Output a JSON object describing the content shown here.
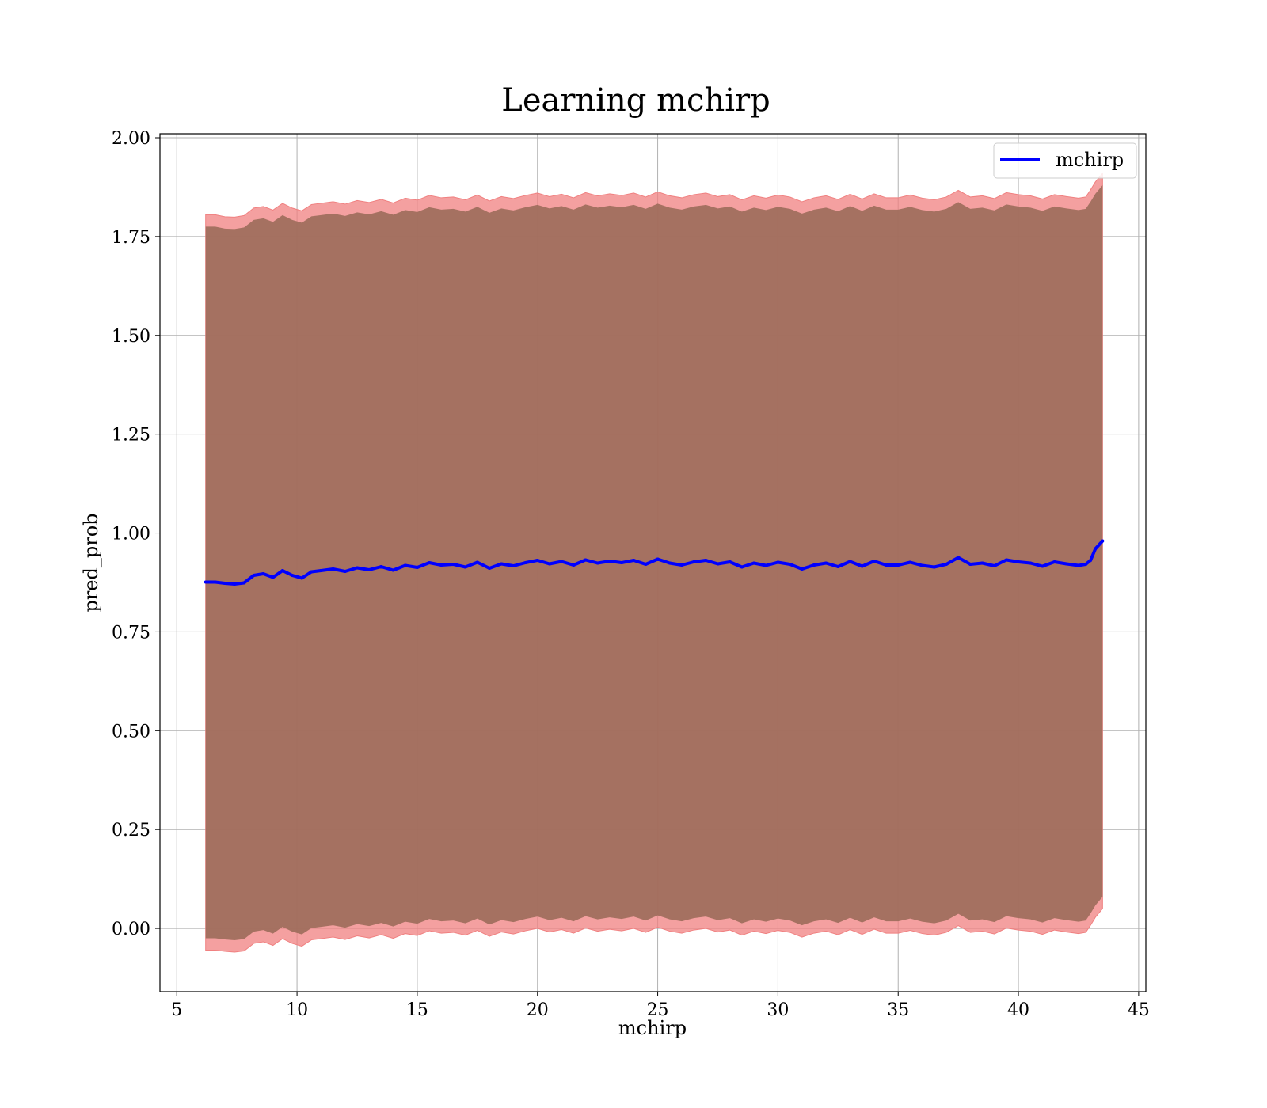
{
  "chart_data": {
    "type": "line",
    "title": "Learning mchirp",
    "xlabel": "mchirp",
    "ylabel": "pred_prob",
    "xlim": [
      4.3,
      45.3
    ],
    "ylim": [
      -0.16,
      2.01
    ],
    "x_ticks": [
      5,
      10,
      15,
      20,
      25,
      30,
      35,
      40,
      45
    ],
    "y_ticks": [
      0.0,
      0.25,
      0.5,
      0.75,
      1.0,
      1.25,
      1.5,
      1.75,
      2.0
    ],
    "x_tick_labels": [
      "5",
      "10",
      "15",
      "20",
      "25",
      "30",
      "35",
      "40",
      "45"
    ],
    "y_tick_labels": [
      "0.00",
      "0.25",
      "0.50",
      "0.75",
      "1.00",
      "1.25",
      "1.50",
      "1.75",
      "2.00"
    ],
    "grid": true,
    "legend_position": "top-right",
    "series": [
      {
        "name": "mchirp",
        "color": "#0000ff",
        "x": [
          6.2,
          6.6,
          7.0,
          7.4,
          7.8,
          8.2,
          8.6,
          9.0,
          9.4,
          9.8,
          10.2,
          10.6,
          11.0,
          11.5,
          12.0,
          12.5,
          13.0,
          13.5,
          14.0,
          14.5,
          15.0,
          15.5,
          16.0,
          16.5,
          17.0,
          17.5,
          18.0,
          18.5,
          19.0,
          19.5,
          20.0,
          20.5,
          21.0,
          21.5,
          22.0,
          22.5,
          23.0,
          23.5,
          24.0,
          24.5,
          25.0,
          25.5,
          26.0,
          26.5,
          27.0,
          27.5,
          28.0,
          28.5,
          29.0,
          29.5,
          30.0,
          30.5,
          31.0,
          31.5,
          32.0,
          32.5,
          33.0,
          33.5,
          34.0,
          34.5,
          35.0,
          35.5,
          36.0,
          36.5,
          37.0,
          37.5,
          38.0,
          38.5,
          39.0,
          39.5,
          40.0,
          40.5,
          41.0,
          41.5,
          42.0,
          42.5,
          42.8,
          43.0,
          43.2,
          43.5
        ],
        "values": [
          0.876,
          0.876,
          0.873,
          0.871,
          0.874,
          0.893,
          0.897,
          0.888,
          0.905,
          0.893,
          0.886,
          0.902,
          0.905,
          0.909,
          0.903,
          0.912,
          0.907,
          0.915,
          0.906,
          0.918,
          0.913,
          0.925,
          0.919,
          0.921,
          0.914,
          0.926,
          0.911,
          0.922,
          0.917,
          0.925,
          0.931,
          0.922,
          0.928,
          0.919,
          0.932,
          0.924,
          0.929,
          0.925,
          0.931,
          0.921,
          0.934,
          0.924,
          0.919,
          0.927,
          0.931,
          0.922,
          0.927,
          0.914,
          0.924,
          0.918,
          0.926,
          0.921,
          0.909,
          0.919,
          0.924,
          0.915,
          0.928,
          0.916,
          0.929,
          0.919,
          0.919,
          0.926,
          0.918,
          0.914,
          0.921,
          0.938,
          0.921,
          0.924,
          0.917,
          0.932,
          0.927,
          0.924,
          0.916,
          0.927,
          0.922,
          0.918,
          0.921,
          0.931,
          0.96,
          0.98
        ],
        "band_outer_upper": [
          1.805,
          1.805,
          1.8,
          1.799,
          1.803,
          1.822,
          1.826,
          1.817,
          1.834,
          1.822,
          1.815,
          1.831,
          1.834,
          1.838,
          1.832,
          1.841,
          1.836,
          1.844,
          1.835,
          1.847,
          1.842,
          1.854,
          1.848,
          1.85,
          1.843,
          1.855,
          1.84,
          1.851,
          1.846,
          1.854,
          1.86,
          1.851,
          1.857,
          1.848,
          1.861,
          1.853,
          1.858,
          1.854,
          1.86,
          1.85,
          1.863,
          1.853,
          1.848,
          1.856,
          1.86,
          1.851,
          1.856,
          1.843,
          1.853,
          1.847,
          1.855,
          1.85,
          1.838,
          1.848,
          1.853,
          1.844,
          1.857,
          1.845,
          1.858,
          1.848,
          1.848,
          1.855,
          1.847,
          1.843,
          1.85,
          1.867,
          1.85,
          1.853,
          1.846,
          1.861,
          1.856,
          1.853,
          1.845,
          1.856,
          1.851,
          1.847,
          1.85,
          1.868,
          1.888,
          1.91
        ],
        "band_outer_lower": [
          -0.055,
          -0.055,
          -0.058,
          -0.06,
          -0.057,
          -0.038,
          -0.034,
          -0.043,
          -0.026,
          -0.038,
          -0.045,
          -0.029,
          -0.026,
          -0.022,
          -0.028,
          -0.019,
          -0.024,
          -0.016,
          -0.025,
          -0.013,
          -0.018,
          -0.006,
          -0.012,
          -0.01,
          -0.017,
          -0.005,
          -0.02,
          -0.009,
          -0.014,
          -0.006,
          0.0,
          -0.009,
          -0.003,
          -0.012,
          0.001,
          -0.007,
          -0.002,
          -0.006,
          0.0,
          -0.01,
          0.003,
          -0.007,
          -0.012,
          -0.004,
          0.0,
          -0.009,
          -0.004,
          -0.017,
          -0.007,
          -0.013,
          -0.005,
          -0.01,
          -0.022,
          -0.012,
          -0.007,
          -0.016,
          -0.003,
          -0.015,
          -0.002,
          -0.012,
          -0.012,
          -0.005,
          -0.013,
          -0.017,
          -0.01,
          0.007,
          -0.01,
          -0.007,
          -0.014,
          0.001,
          -0.004,
          -0.007,
          -0.015,
          -0.004,
          -0.009,
          -0.013,
          -0.01,
          0.008,
          0.028,
          0.05
        ],
        "band_inner_upper": [
          1.775,
          1.775,
          1.77,
          1.769,
          1.773,
          1.792,
          1.796,
          1.787,
          1.804,
          1.792,
          1.785,
          1.801,
          1.804,
          1.808,
          1.802,
          1.811,
          1.806,
          1.814,
          1.805,
          1.817,
          1.812,
          1.824,
          1.818,
          1.82,
          1.813,
          1.825,
          1.81,
          1.821,
          1.816,
          1.824,
          1.83,
          1.821,
          1.827,
          1.818,
          1.831,
          1.823,
          1.828,
          1.824,
          1.83,
          1.82,
          1.833,
          1.823,
          1.818,
          1.826,
          1.83,
          1.821,
          1.826,
          1.813,
          1.823,
          1.817,
          1.825,
          1.82,
          1.808,
          1.818,
          1.823,
          1.814,
          1.827,
          1.815,
          1.828,
          1.818,
          1.818,
          1.825,
          1.817,
          1.813,
          1.82,
          1.837,
          1.82,
          1.823,
          1.816,
          1.831,
          1.826,
          1.823,
          1.815,
          1.826,
          1.821,
          1.817,
          1.82,
          1.838,
          1.858,
          1.88
        ],
        "band_inner_lower": [
          -0.025,
          -0.025,
          -0.028,
          -0.03,
          -0.027,
          -0.008,
          -0.004,
          -0.013,
          0.004,
          -0.008,
          -0.015,
          0.001,
          0.004,
          0.008,
          0.002,
          0.011,
          0.006,
          0.014,
          0.005,
          0.017,
          0.012,
          0.024,
          0.018,
          0.02,
          0.013,
          0.025,
          0.01,
          0.021,
          0.016,
          0.024,
          0.03,
          0.021,
          0.027,
          0.018,
          0.031,
          0.023,
          0.028,
          0.024,
          0.03,
          0.02,
          0.033,
          0.023,
          0.018,
          0.026,
          0.03,
          0.021,
          0.026,
          0.013,
          0.023,
          0.017,
          0.025,
          0.02,
          0.008,
          0.018,
          0.023,
          0.014,
          0.027,
          0.015,
          0.028,
          0.018,
          0.018,
          0.025,
          0.017,
          0.013,
          0.02,
          0.037,
          0.02,
          0.023,
          0.016,
          0.031,
          0.026,
          0.023,
          0.015,
          0.026,
          0.021,
          0.017,
          0.02,
          0.038,
          0.058,
          0.08
        ]
      }
    ]
  },
  "colors": {
    "line": "#0000ff",
    "band_outer": "#f08080",
    "band_inner": "#9c6b5a",
    "band_core": "#a07078",
    "grid": "#b0b0b0"
  }
}
